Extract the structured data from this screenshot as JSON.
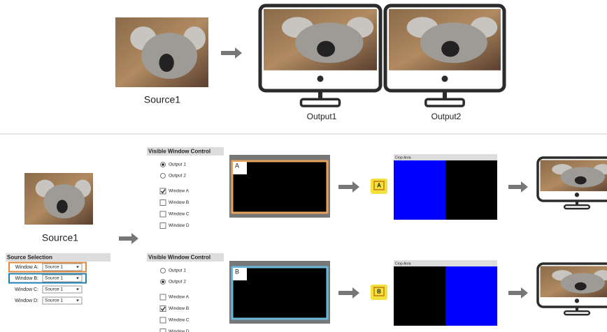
{
  "top": {
    "source_label": "Source1",
    "outputs": [
      "Output1",
      "Output2"
    ]
  },
  "bottom": {
    "source_label": "Source1",
    "source_selection": {
      "title": "Source Selection",
      "rows": [
        {
          "label": "Window A:",
          "value": "Source 1",
          "highlight": "#e0893a"
        },
        {
          "label": "Window B:",
          "value": "Source 1",
          "highlight": "#1f7fb0"
        },
        {
          "label": "Window C:",
          "value": "Source 1"
        },
        {
          "label": "Window D:",
          "value": "Source 1"
        }
      ]
    },
    "panels": [
      {
        "title": "Visible Window Control",
        "outputs": [
          {
            "label": "Output 1",
            "selected": true
          },
          {
            "label": "Output 2",
            "selected": false
          }
        ],
        "windows": [
          {
            "label": "Window A",
            "checked": true
          },
          {
            "label": "Window B",
            "checked": false
          },
          {
            "label": "Window C",
            "checked": false
          },
          {
            "label": "Window D",
            "checked": false
          }
        ],
        "window_tag": "A",
        "frame_color": "#e8a25a",
        "icon_label": "A",
        "crop_title": "Crop Area",
        "crop_blue_side": "left"
      },
      {
        "title": "Visible Window Control",
        "outputs": [
          {
            "label": "Output 1",
            "selected": false
          },
          {
            "label": "Output 2",
            "selected": true
          }
        ],
        "windows": [
          {
            "label": "Window A",
            "checked": false
          },
          {
            "label": "Window B",
            "checked": true
          },
          {
            "label": "Window C",
            "checked": false
          },
          {
            "label": "Window D",
            "checked": false
          }
        ],
        "window_tag": "B",
        "frame_color": "#6ab8dc",
        "icon_label": "B",
        "crop_title": "Crop Area",
        "crop_blue_side": "right"
      }
    ]
  }
}
